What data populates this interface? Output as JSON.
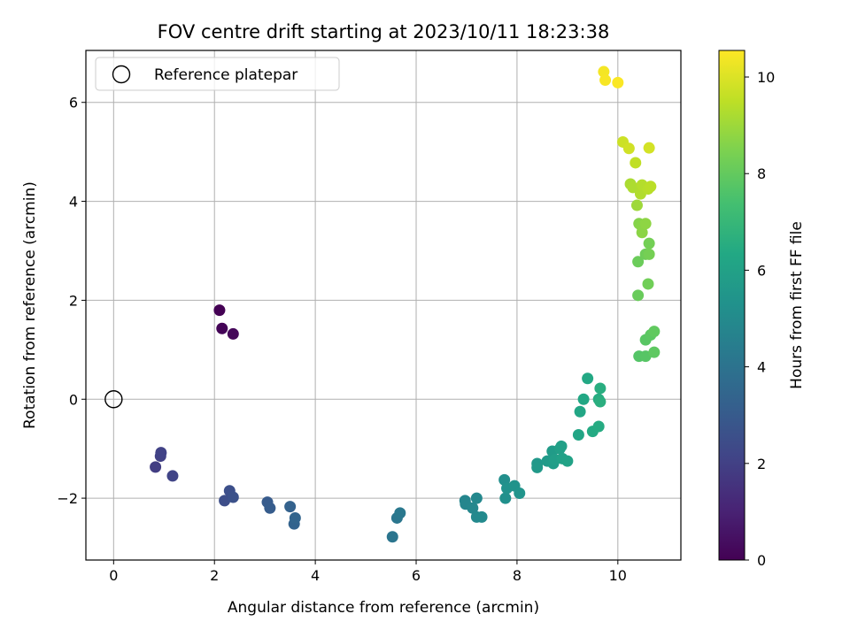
{
  "chart_data": {
    "type": "scatter",
    "title": "FOV centre drift starting at 2023/10/11 18:23:38",
    "xlabel": "Angular distance from reference (arcmin)",
    "ylabel": "Rotation from reference (arcmin)",
    "xlim": [
      -0.55,
      11.25
    ],
    "ylim": [
      -3.25,
      7.05
    ],
    "xticks": [
      0,
      2,
      4,
      6,
      8,
      10
    ],
    "yticks": [
      -2,
      0,
      2,
      4,
      6
    ],
    "ytick_labels": [
      "−2",
      "0",
      "2",
      "4",
      "6"
    ],
    "grid": true,
    "colormap": "viridis",
    "colorbar": {
      "label": "Hours from first FF file",
      "range": [
        0,
        10.55
      ],
      "ticks": [
        0,
        2,
        4,
        6,
        8,
        10
      ]
    },
    "legend": {
      "placement": "top-left",
      "entries": [
        "Reference platepar"
      ]
    },
    "reference_point": {
      "x": 0,
      "y": 0
    },
    "points": [
      {
        "x": 2.1,
        "y": 1.8,
        "t": 0.0
      },
      {
        "x": 2.15,
        "y": 1.43,
        "t": 0.1
      },
      {
        "x": 2.37,
        "y": 1.32,
        "t": 0.2
      },
      {
        "x": 0.83,
        "y": -1.37,
        "t": 1.9
      },
      {
        "x": 0.93,
        "y": -1.15,
        "t": 2.0
      },
      {
        "x": 0.94,
        "y": -1.08,
        "t": 2.05
      },
      {
        "x": 1.17,
        "y": -1.55,
        "t": 2.15
      },
      {
        "x": 2.2,
        "y": -2.05,
        "t": 2.5
      },
      {
        "x": 2.3,
        "y": -1.85,
        "t": 2.55
      },
      {
        "x": 2.37,
        "y": -1.98,
        "t": 2.6
      },
      {
        "x": 3.05,
        "y": -2.08,
        "t": 3.0
      },
      {
        "x": 3.1,
        "y": -2.2,
        "t": 3.05
      },
      {
        "x": 3.5,
        "y": -2.17,
        "t": 3.3
      },
      {
        "x": 3.58,
        "y": -2.52,
        "t": 3.35
      },
      {
        "x": 3.6,
        "y": -2.4,
        "t": 3.4
      },
      {
        "x": 5.53,
        "y": -2.78,
        "t": 4.1
      },
      {
        "x": 5.62,
        "y": -2.4,
        "t": 4.15
      },
      {
        "x": 5.68,
        "y": -2.3,
        "t": 4.2
      },
      {
        "x": 6.97,
        "y": -2.05,
        "t": 4.75
      },
      {
        "x": 6.98,
        "y": -2.12,
        "t": 4.8
      },
      {
        "x": 7.12,
        "y": -2.2,
        "t": 4.85
      },
      {
        "x": 7.2,
        "y": -2.0,
        "t": 4.9
      },
      {
        "x": 7.2,
        "y": -2.38,
        "t": 4.95
      },
      {
        "x": 7.3,
        "y": -2.38,
        "t": 5.0
      },
      {
        "x": 7.75,
        "y": -1.63,
        "t": 5.2
      },
      {
        "x": 7.77,
        "y": -2.0,
        "t": 5.25
      },
      {
        "x": 7.8,
        "y": -1.8,
        "t": 5.3
      },
      {
        "x": 7.95,
        "y": -1.75,
        "t": 5.35
      },
      {
        "x": 8.05,
        "y": -1.9,
        "t": 5.4
      },
      {
        "x": 8.4,
        "y": -1.3,
        "t": 5.6
      },
      {
        "x": 8.4,
        "y": -1.38,
        "t": 5.65
      },
      {
        "x": 8.6,
        "y": -1.25,
        "t": 5.7
      },
      {
        "x": 8.7,
        "y": -1.05,
        "t": 5.75
      },
      {
        "x": 8.72,
        "y": -1.3,
        "t": 5.8
      },
      {
        "x": 8.75,
        "y": -1.22,
        "t": 5.85
      },
      {
        "x": 8.85,
        "y": -1.0,
        "t": 5.9
      },
      {
        "x": 8.88,
        "y": -0.95,
        "t": 5.95
      },
      {
        "x": 8.9,
        "y": -1.2,
        "t": 6.0
      },
      {
        "x": 9.0,
        "y": -1.25,
        "t": 6.05
      },
      {
        "x": 9.22,
        "y": -0.72,
        "t": 6.2
      },
      {
        "x": 9.25,
        "y": -0.25,
        "t": 6.25
      },
      {
        "x": 9.32,
        "y": 0.0,
        "t": 6.3
      },
      {
        "x": 9.4,
        "y": 0.42,
        "t": 6.35
      },
      {
        "x": 9.5,
        "y": -0.65,
        "t": 6.4
      },
      {
        "x": 9.62,
        "y": -0.55,
        "t": 6.45
      },
      {
        "x": 9.62,
        "y": 0.0,
        "t": 6.5
      },
      {
        "x": 9.65,
        "y": 0.22,
        "t": 6.55
      },
      {
        "x": 9.65,
        "y": -0.05,
        "t": 6.6
      },
      {
        "x": 10.42,
        "y": 0.87,
        "t": 7.7
      },
      {
        "x": 10.55,
        "y": 0.87,
        "t": 7.75
      },
      {
        "x": 10.55,
        "y": 1.2,
        "t": 7.8
      },
      {
        "x": 10.65,
        "y": 1.3,
        "t": 7.85
      },
      {
        "x": 10.72,
        "y": 0.95,
        "t": 7.9
      },
      {
        "x": 10.72,
        "y": 1.37,
        "t": 7.95
      },
      {
        "x": 10.4,
        "y": 2.1,
        "t": 8.1
      },
      {
        "x": 10.4,
        "y": 2.78,
        "t": 8.15
      },
      {
        "x": 10.55,
        "y": 2.93,
        "t": 8.2
      },
      {
        "x": 10.6,
        "y": 2.33,
        "t": 8.25
      },
      {
        "x": 10.62,
        "y": 3.15,
        "t": 8.3
      },
      {
        "x": 10.62,
        "y": 2.93,
        "t": 8.35
      },
      {
        "x": 10.42,
        "y": 3.55,
        "t": 8.6
      },
      {
        "x": 10.47,
        "y": 3.5,
        "t": 8.65
      },
      {
        "x": 10.48,
        "y": 3.37,
        "t": 8.7
      },
      {
        "x": 10.55,
        "y": 3.55,
        "t": 8.75
      },
      {
        "x": 10.38,
        "y": 3.92,
        "t": 9.0
      },
      {
        "x": 10.25,
        "y": 4.35,
        "t": 9.2
      },
      {
        "x": 10.3,
        "y": 4.28,
        "t": 9.25
      },
      {
        "x": 10.45,
        "y": 4.15,
        "t": 9.3
      },
      {
        "x": 10.48,
        "y": 4.33,
        "t": 9.35
      },
      {
        "x": 10.6,
        "y": 4.25,
        "t": 9.4
      },
      {
        "x": 10.65,
        "y": 4.3,
        "t": 9.45
      },
      {
        "x": 10.35,
        "y": 4.78,
        "t": 9.55
      },
      {
        "x": 10.1,
        "y": 5.2,
        "t": 9.75
      },
      {
        "x": 10.22,
        "y": 5.07,
        "t": 9.8
      },
      {
        "x": 10.62,
        "y": 5.08,
        "t": 9.85
      },
      {
        "x": 9.72,
        "y": 6.62,
        "t": 10.4
      },
      {
        "x": 9.75,
        "y": 6.45,
        "t": 10.45
      },
      {
        "x": 10.0,
        "y": 6.4,
        "t": 10.5
      }
    ]
  }
}
